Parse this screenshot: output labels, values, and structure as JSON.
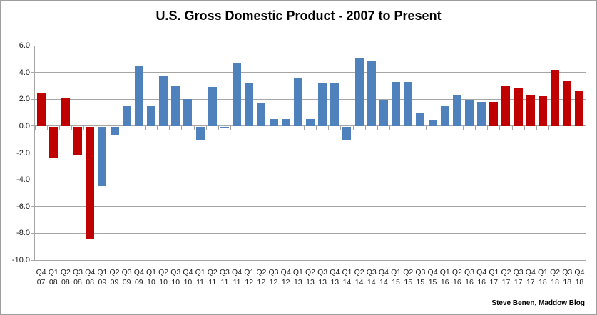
{
  "chart": {
    "attribution": "Steve Benen, Maddow Blog"
  },
  "chart_data": {
    "type": "bar",
    "title": "U.S. Gross Domestic Product - 2007 to Present",
    "categories": [
      "Q4 07",
      "Q1 08",
      "Q2 08",
      "Q3 08",
      "Q4 08",
      "Q1 09",
      "Q2 09",
      "Q3 09",
      "Q4 09",
      "Q1 10",
      "Q2 10",
      "Q3 10",
      "Q4 10",
      "Q1 11",
      "Q2 11",
      "Q3 11",
      "Q4 11",
      "Q1 12",
      "Q2 12",
      "Q3 12",
      "Q4 12",
      "Q1 13",
      "Q2 13",
      "Q3 13",
      "Q4 13",
      "Q1 14",
      "Q2 14",
      "Q3 14",
      "Q4 14",
      "Q1 15",
      "Q2 15",
      "Q3 15",
      "Q4 15",
      "Q1 16",
      "Q2 16",
      "Q3 16",
      "Q4 16",
      "Q1 17",
      "Q2 17",
      "Q3 17",
      "Q4 17",
      "Q1 18",
      "Q2 18",
      "Q3 18",
      "Q4 18"
    ],
    "values": [
      2.5,
      -2.3,
      2.1,
      -2.1,
      -8.4,
      -4.4,
      -0.6,
      1.5,
      4.5,
      1.5,
      3.7,
      3.0,
      2.0,
      -1.0,
      2.9,
      -0.1,
      4.7,
      3.2,
      1.7,
      0.5,
      0.5,
      3.6,
      0.5,
      3.2,
      3.2,
      -1.0,
      5.1,
      4.9,
      1.9,
      3.3,
      3.3,
      1.0,
      0.4,
      1.5,
      2.3,
      1.9,
      1.8,
      1.8,
      3.0,
      2.8,
      2.3,
      2.2,
      4.2,
      3.4,
      2.6
    ],
    "bar_colors": [
      "#C00000",
      "#C00000",
      "#C00000",
      "#C00000",
      "#C00000",
      "#4F81BD",
      "#4F81BD",
      "#4F81BD",
      "#4F81BD",
      "#4F81BD",
      "#4F81BD",
      "#4F81BD",
      "#4F81BD",
      "#4F81BD",
      "#4F81BD",
      "#4F81BD",
      "#4F81BD",
      "#4F81BD",
      "#4F81BD",
      "#4F81BD",
      "#4F81BD",
      "#4F81BD",
      "#4F81BD",
      "#4F81BD",
      "#4F81BD",
      "#4F81BD",
      "#4F81BD",
      "#4F81BD",
      "#4F81BD",
      "#4F81BD",
      "#4F81BD",
      "#4F81BD",
      "#4F81BD",
      "#4F81BD",
      "#4F81BD",
      "#4F81BD",
      "#4F81BD",
      "#C00000",
      "#C00000",
      "#C00000",
      "#C00000",
      "#C00000",
      "#C00000",
      "#C00000",
      "#C00000"
    ],
    "palette": {
      "red": "#C00000",
      "blue": "#4F81BD"
    },
    "ylim": [
      -10.0,
      6.0
    ],
    "yticks": [
      6.0,
      4.0,
      2.0,
      0.0,
      -2.0,
      -4.0,
      -6.0,
      -8.0,
      -10.0
    ],
    "ytick_labels": [
      "6.0",
      "4.0",
      "2.0",
      "0.0",
      "-2.0",
      "-4.0",
      "-6.0",
      "-8.0",
      "-10.0"
    ],
    "xlabel": "",
    "ylabel": "",
    "grid": true,
    "legend": false,
    "gridline_color": "#A6A6A6",
    "annotations": [
      "Steve Benen, Maddow Blog"
    ]
  }
}
